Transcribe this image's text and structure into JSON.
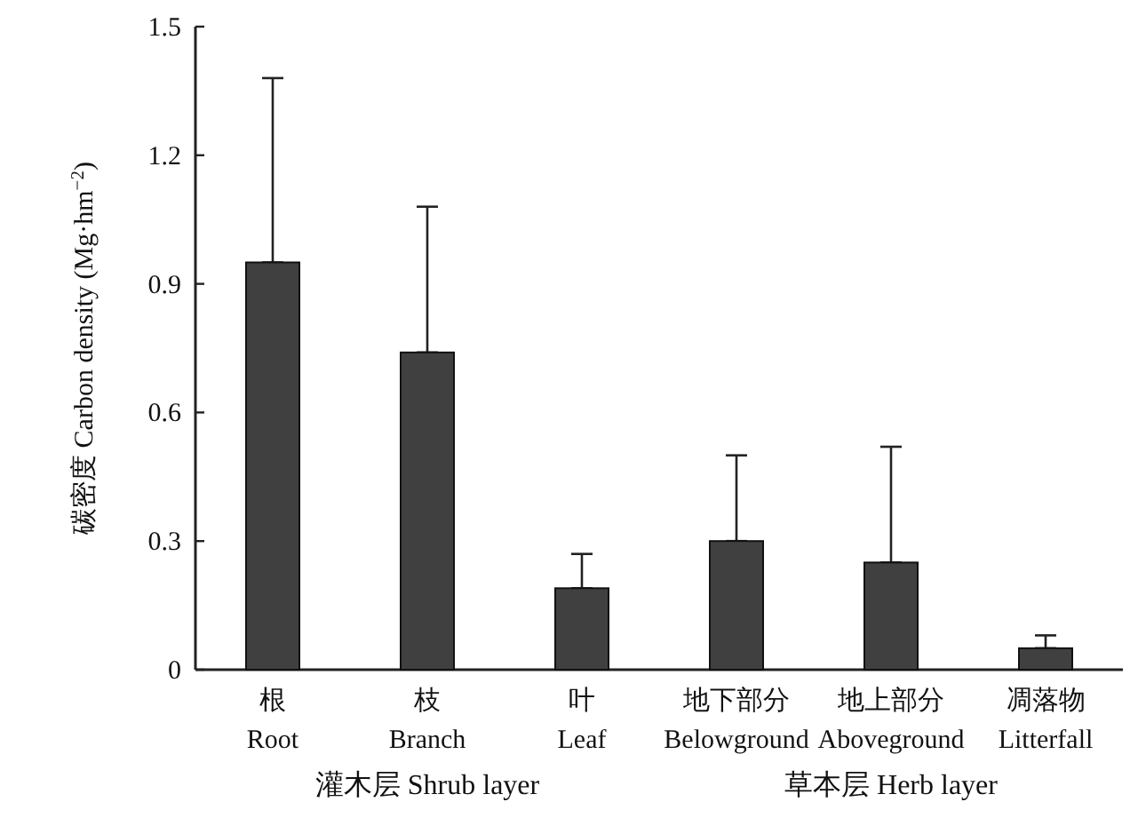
{
  "chart_data": {
    "type": "bar",
    "ylabel": "碳密度 Carbon density (Mg·hm$^{−2}$)",
    "categories": [
      "根\nRoot",
      "枝\nBranch",
      "叶\nLeaf",
      "地下部分\nBelowground",
      "地上部分\nAboveground",
      "凋落物\nLitterfall"
    ],
    "values": [
      0.95,
      0.74,
      0.19,
      0.3,
      0.25,
      0.05
    ],
    "errors": [
      [
        0.95,
        1.38
      ],
      [
        0.74,
        1.08
      ],
      [
        0.19,
        0.27
      ],
      [
        0.3,
        0.5
      ],
      [
        0.25,
        0.52
      ],
      [
        0.05,
        0.08
      ]
    ],
    "color": "#404040",
    "ylim": [
      0,
      1.5
    ],
    "yticks": [
      0,
      0.3,
      0.6,
      0.9,
      1.2,
      1.5
    ],
    "grid": false,
    "annotations": [
      "灌木层 Shrub layer",
      "草本层 Herb layer"
    ]
  }
}
